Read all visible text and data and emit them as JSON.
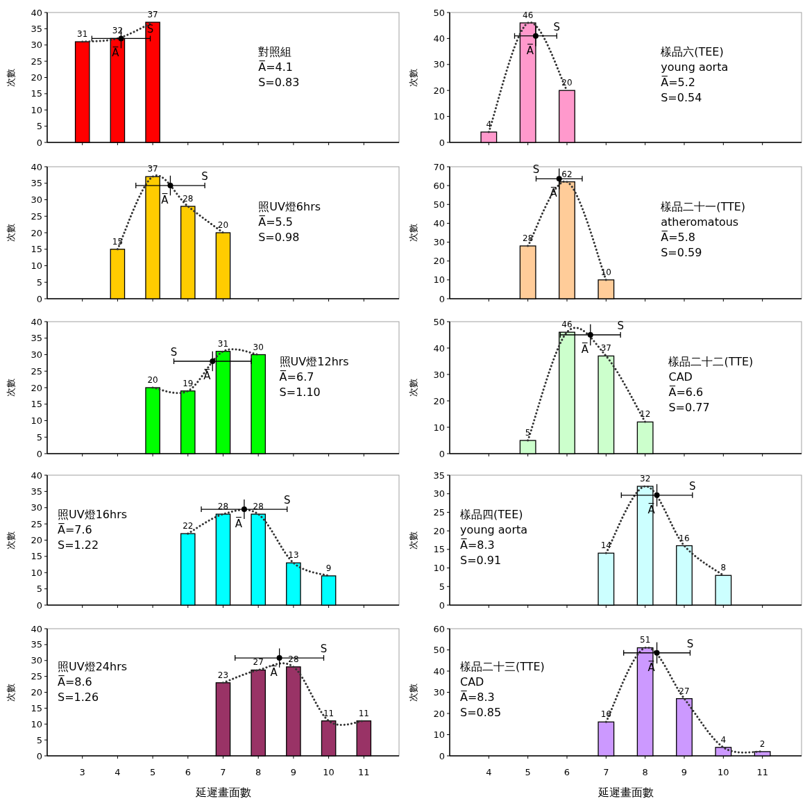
{
  "chart_data": [
    {
      "type": "bar",
      "ylabel": "次數",
      "x": [
        3,
        4,
        5
      ],
      "xlim": [
        2,
        12
      ],
      "xticks": [
        3,
        4,
        5,
        6,
        7,
        8,
        9,
        10,
        11
      ],
      "ylim": [
        0,
        40
      ],
      "yticks": [
        0,
        5,
        10,
        15,
        20,
        25,
        30,
        35,
        40
      ],
      "tick_labels": "y",
      "line_style": "dotted",
      "annotations": [
        "對照組",
        "A̅=4.1",
        "S=0.83",
        {
          "text": "S",
          "x": 4.93,
          "y": 32
        },
        {
          "text": "A̅",
          "x": 4.1,
          "y": 32
        }
      ],
      "series": [
        {
          "color": "#ff0000",
          "values": [
            31,
            32,
            37
          ],
          "value_labels": [
            "31",
            "32",
            "37"
          ]
        },
        {
          "type": "line",
          "color": "#333333",
          "values": [
            31,
            32,
            37
          ]
        },
        {
          "type": "scatter",
          "color": "#000000",
          "x": [
            4.1
          ],
          "values": [
            32
          ],
          "xerrors": [
            0.83
          ],
          "errors": [
            3
          ]
        }
      ]
    },
    {
      "type": "bar",
      "ylabel": "次數",
      "x": [
        4,
        5,
        6
      ],
      "xlim": [
        3,
        12
      ],
      "xticks": [
        4,
        5,
        6,
        7,
        8,
        9,
        10,
        11
      ],
      "ylim": [
        0,
        50
      ],
      "yticks": [
        0,
        10,
        20,
        30,
        40,
        50
      ],
      "tick_labels": "y",
      "line_style": "dotted",
      "annotations": [
        "樣品六(TEE)",
        "young aorta",
        "A̅=5.2",
        "S=0.54",
        {
          "text": "S",
          "x": 5.74,
          "y": 41
        },
        {
          "text": "A̅",
          "x": 5.2,
          "y": 41
        }
      ],
      "series": [
        {
          "color": "#ff99cc",
          "values": [
            4,
            46,
            20
          ],
          "value_labels": [
            "4",
            "46",
            "20"
          ]
        },
        {
          "type": "line",
          "color": "#333333",
          "values": [
            4,
            46,
            20
          ]
        },
        {
          "type": "scatter",
          "color": "#000000",
          "x": [
            5.2
          ],
          "values": [
            41
          ],
          "xerrors": [
            0.54
          ],
          "errors": [
            4
          ]
        }
      ]
    },
    {
      "type": "bar",
      "ylabel": "次數",
      "x": [
        4,
        5,
        6,
        7
      ],
      "xlim": [
        2,
        12
      ],
      "xticks": [
        3,
        4,
        5,
        6,
        7,
        8,
        9,
        10,
        11
      ],
      "ylim": [
        0,
        40
      ],
      "yticks": [
        0,
        5,
        10,
        15,
        20,
        25,
        30,
        35,
        40
      ],
      "tick_labels": "y",
      "line_style": "dotted",
      "annotations": [
        "照UV燈6hrs",
        "A̅=5.5",
        "S=0.98",
        {
          "text": "S",
          "x": 6.48,
          "y": 34.3
        },
        {
          "text": "A̅",
          "x": 5.5,
          "y": 34.3
        }
      ],
      "series": [
        {
          "color": "#ffcc00",
          "values": [
            15,
            37,
            28,
            20
          ],
          "value_labels": [
            "15",
            "37",
            "28",
            "20"
          ]
        },
        {
          "type": "line",
          "color": "#333333",
          "values": [
            15,
            37,
            28,
            20
          ]
        },
        {
          "type": "scatter",
          "color": "#000000",
          "x": [
            5.5
          ],
          "values": [
            34.3
          ],
          "xerrors": [
            0.98
          ],
          "errors": [
            3
          ]
        }
      ]
    },
    {
      "type": "bar",
      "ylabel": "次數",
      "x": [
        5,
        6,
        7
      ],
      "xlim": [
        3,
        12
      ],
      "xticks": [
        4,
        5,
        6,
        7,
        8,
        9,
        10,
        11
      ],
      "ylim": [
        0,
        70
      ],
      "yticks": [
        0,
        10,
        20,
        30,
        40,
        50,
        60,
        70
      ],
      "tick_labels": "y",
      "line_style": "dotted",
      "annotations": [
        "樣品二十一(TTE)",
        "atheromatous",
        "A̅=5.8",
        "S=0.59",
        {
          "text": "S",
          "x": 5.21,
          "y": 63.6
        },
        {
          "text": "A̅",
          "x": 5.8,
          "y": 63.6
        }
      ],
      "series": [
        {
          "color": "#ffcc99",
          "values": [
            28,
            62,
            10
          ],
          "value_labels": [
            "28",
            "62",
            "10"
          ]
        },
        {
          "type": "line",
          "color": "#333333",
          "values": [
            28,
            62,
            10
          ]
        },
        {
          "type": "scatter",
          "color": "#000000",
          "x": [
            5.8
          ],
          "values": [
            63.6
          ],
          "xerrors": [
            0.59
          ],
          "errors": [
            5.5
          ]
        }
      ]
    },
    {
      "type": "bar",
      "ylabel": "次數",
      "x": [
        5,
        6,
        7,
        8
      ],
      "xlim": [
        2,
        12
      ],
      "xticks": [
        3,
        4,
        5,
        6,
        7,
        8,
        9,
        10,
        11
      ],
      "ylim": [
        0,
        40
      ],
      "yticks": [
        0,
        5,
        10,
        15,
        20,
        25,
        30,
        35,
        40
      ],
      "tick_labels": "y",
      "line_style": "dotted",
      "annotations": [
        "照UV燈12hrs",
        "A̅=6.7",
        "S=1.10",
        {
          "text": "S",
          "x": 5.6,
          "y": 28
        },
        {
          "text": "A̅",
          "x": 6.7,
          "y": 28
        }
      ],
      "series": [
        {
          "color": "#00ff00",
          "values": [
            20,
            19,
            31,
            30
          ],
          "value_labels": [
            "20",
            "19",
            "31",
            "30"
          ]
        },
        {
          "type": "line",
          "color": "#333333",
          "values": [
            20,
            19,
            31,
            30
          ]
        },
        {
          "type": "scatter",
          "color": "#000000",
          "x": [
            6.7
          ],
          "values": [
            28
          ],
          "xerrors": [
            1.1
          ],
          "errors": [
            3
          ]
        }
      ]
    },
    {
      "type": "bar",
      "ylabel": "次數",
      "x": [
        5,
        6,
        7,
        8
      ],
      "xlim": [
        3,
        12
      ],
      "xticks": [
        4,
        5,
        6,
        7,
        8,
        9,
        10,
        11
      ],
      "ylim": [
        0,
        50
      ],
      "yticks": [
        0,
        10,
        20,
        30,
        40,
        50
      ],
      "tick_labels": "y",
      "line_style": "dotted",
      "annotations": [
        "樣品二十二(TTE)",
        "CAD",
        "A̅=6.6",
        "S=0.77",
        {
          "text": "S",
          "x": 7.37,
          "y": 45
        },
        {
          "text": "A̅",
          "x": 6.6,
          "y": 45
        }
      ],
      "series": [
        {
          "color": "#ccffcc",
          "values": [
            5,
            46,
            37,
            12
          ],
          "value_labels": [
            "5",
            "46",
            "37",
            "12"
          ]
        },
        {
          "type": "line",
          "color": "#333333",
          "values": [
            5,
            46,
            37,
            12
          ]
        },
        {
          "type": "scatter",
          "color": "#000000",
          "x": [
            6.6
          ],
          "values": [
            45
          ],
          "xerrors": [
            0.77
          ],
          "errors": [
            4
          ]
        }
      ]
    },
    {
      "type": "bar",
      "ylabel": "次數",
      "x": [
        6,
        7,
        8,
        9,
        10
      ],
      "xlim": [
        2,
        12
      ],
      "xticks": [
        3,
        4,
        5,
        6,
        7,
        8,
        9,
        10,
        11
      ],
      "ylim": [
        0,
        40
      ],
      "yticks": [
        0,
        5,
        10,
        15,
        20,
        25,
        30,
        35,
        40
      ],
      "tick_labels": "y",
      "line_style": "dotted",
      "annotations": [
        "照UV燈16hrs",
        "A̅=7.6",
        "S=1.22",
        {
          "text": "S",
          "x": 8.82,
          "y": 29.5
        },
        {
          "text": "A̅",
          "x": 7.6,
          "y": 29.5
        }
      ],
      "series": [
        {
          "color": "#00ffff",
          "values": [
            22,
            28,
            28,
            13,
            9
          ],
          "value_labels": [
            "22",
            "28",
            "28",
            "13",
            "9"
          ]
        },
        {
          "type": "line",
          "color": "#333333",
          "values": [
            22,
            28,
            28,
            13,
            9
          ]
        },
        {
          "type": "scatter",
          "color": "#000000",
          "x": [
            7.6
          ],
          "values": [
            29.5
          ],
          "xerrors": [
            1.22
          ],
          "errors": [
            3
          ]
        }
      ]
    },
    {
      "type": "bar",
      "ylabel": "次數",
      "x": [
        7,
        8,
        9,
        10
      ],
      "xlim": [
        3,
        12
      ],
      "xticks": [
        4,
        5,
        6,
        7,
        8,
        9,
        10,
        11
      ],
      "ylim": [
        0,
        35
      ],
      "yticks": [
        0,
        5,
        10,
        15,
        20,
        25,
        30,
        35
      ],
      "tick_labels": "y",
      "line_style": "dotted",
      "annotations": [
        "樣品四(TEE)",
        "young aorta",
        "A̅=8.3",
        "S=0.91",
        {
          "text": "S",
          "x": 9.21,
          "y": 29.6
        },
        {
          "text": "A̅",
          "x": 8.3,
          "y": 29.6
        }
      ],
      "series": [
        {
          "color": "#ccffff",
          "values": [
            14,
            32,
            16,
            8
          ],
          "value_labels": [
            "14",
            "32",
            "16",
            "8"
          ]
        },
        {
          "type": "line",
          "color": "#333333",
          "values": [
            14,
            32,
            16,
            8
          ]
        },
        {
          "type": "scatter",
          "color": "#000000",
          "x": [
            8.3
          ],
          "values": [
            29.6
          ],
          "xerrors": [
            0.91
          ],
          "errors": [
            3
          ]
        }
      ]
    },
    {
      "type": "bar",
      "ylabel": "次數",
      "xlabel": "延遲畫面數",
      "x": [
        7,
        8,
        9,
        10,
        11
      ],
      "xlim": [
        2,
        12
      ],
      "xticks": [
        3,
        4,
        5,
        6,
        7,
        8,
        9,
        10,
        11
      ],
      "ylim": [
        0,
        40
      ],
      "yticks": [
        0,
        5,
        10,
        15,
        20,
        25,
        30,
        35,
        40
      ],
      "line_style": "dotted",
      "annotations": [
        "照UV燈24hrs",
        "A̅=8.6",
        "S=1.26",
        {
          "text": "S",
          "x": 9.86,
          "y": 30.8
        },
        {
          "text": "A̅",
          "x": 8.6,
          "y": 30.8
        }
      ],
      "series": [
        {
          "color": "#993366",
          "values": [
            23,
            27,
            28,
            11,
            11
          ],
          "value_labels": [
            "23",
            "27",
            "28",
            "11",
            "11"
          ]
        },
        {
          "type": "line",
          "color": "#333333",
          "values": [
            23,
            27,
            28,
            11,
            11
          ]
        },
        {
          "type": "scatter",
          "color": "#000000",
          "x": [
            8.6
          ],
          "values": [
            30.8
          ],
          "xerrors": [
            1.26
          ],
          "errors": [
            3
          ]
        }
      ]
    },
    {
      "type": "bar",
      "ylabel": "次數",
      "xlabel": "延遲畫面數",
      "x": [
        7,
        8,
        9,
        10,
        11
      ],
      "xlim": [
        3,
        12
      ],
      "xticks": [
        4,
        5,
        6,
        7,
        8,
        9,
        10,
        11
      ],
      "ylim": [
        0,
        60
      ],
      "yticks": [
        0,
        10,
        20,
        30,
        40,
        50,
        60
      ],
      "line_style": "dotted",
      "annotations": [
        "樣品二十三(TTE)",
        "CAD",
        "A̅=8.3",
        "S=0.85",
        {
          "text": "S",
          "x": 9.15,
          "y": 48.6
        },
        {
          "text": "A̅",
          "x": 8.3,
          "y": 48.6
        }
      ],
      "series": [
        {
          "color": "#cc99ff",
          "values": [
            16,
            51,
            27,
            4,
            2
          ],
          "value_labels": [
            "16",
            "51",
            "27",
            "4",
            "2"
          ]
        },
        {
          "type": "line",
          "color": "#333333",
          "values": [
            16,
            51,
            27,
            4,
            2
          ]
        },
        {
          "type": "scatter",
          "color": "#000000",
          "x": [
            8.3
          ],
          "values": [
            48.6
          ],
          "xerrors": [
            0.85
          ],
          "errors": [
            5
          ]
        }
      ]
    }
  ]
}
